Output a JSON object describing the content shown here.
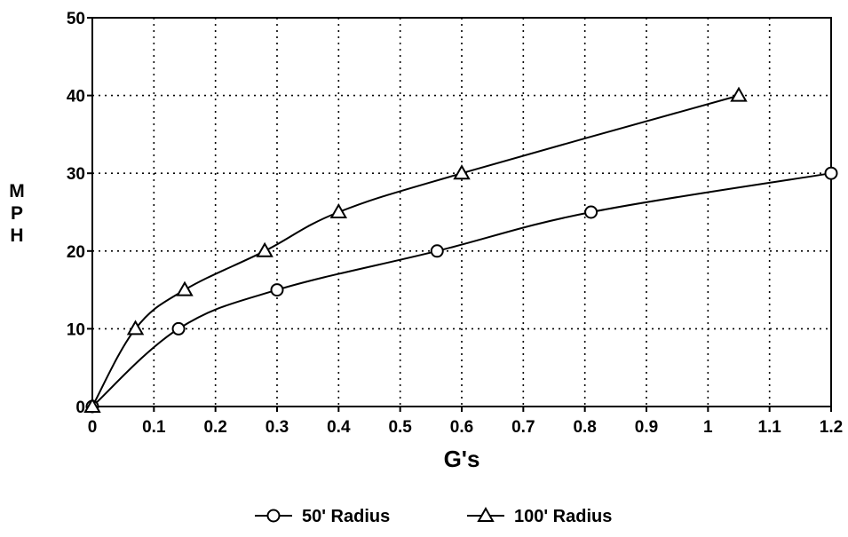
{
  "chart_data": {
    "type": "line",
    "title": "",
    "xlabel": "G's",
    "ylabel": "MPH",
    "xlim": [
      0,
      1.2
    ],
    "ylim": [
      0,
      50
    ],
    "x_ticks": [
      "0",
      "0.1",
      "0.2",
      "0.3",
      "0.4",
      "0.5",
      "0.6",
      "0.7",
      "0.8",
      "0.9",
      "1",
      "1.1",
      "1.2"
    ],
    "y_ticks": [
      "0",
      "10",
      "20",
      "30",
      "40",
      "50"
    ],
    "grid": true,
    "legend_position": "bottom-center",
    "series": [
      {
        "name": "50' Radius",
        "marker": "circle",
        "color": "#000000",
        "points": [
          {
            "x": 0,
            "y": 0
          },
          {
            "x": 0.14,
            "y": 10
          },
          {
            "x": 0.3,
            "y": 15
          },
          {
            "x": 0.56,
            "y": 20
          },
          {
            "x": 0.81,
            "y": 25
          },
          {
            "x": 1.2,
            "y": 30
          }
        ]
      },
      {
        "name": "100' Radius",
        "marker": "triangle",
        "color": "#000000",
        "points": [
          {
            "x": 0,
            "y": 0
          },
          {
            "x": 0.07,
            "y": 10
          },
          {
            "x": 0.15,
            "y": 15
          },
          {
            "x": 0.28,
            "y": 20
          },
          {
            "x": 0.4,
            "y": 25
          },
          {
            "x": 0.6,
            "y": 30
          },
          {
            "x": 1.05,
            "y": 40
          }
        ]
      }
    ]
  }
}
